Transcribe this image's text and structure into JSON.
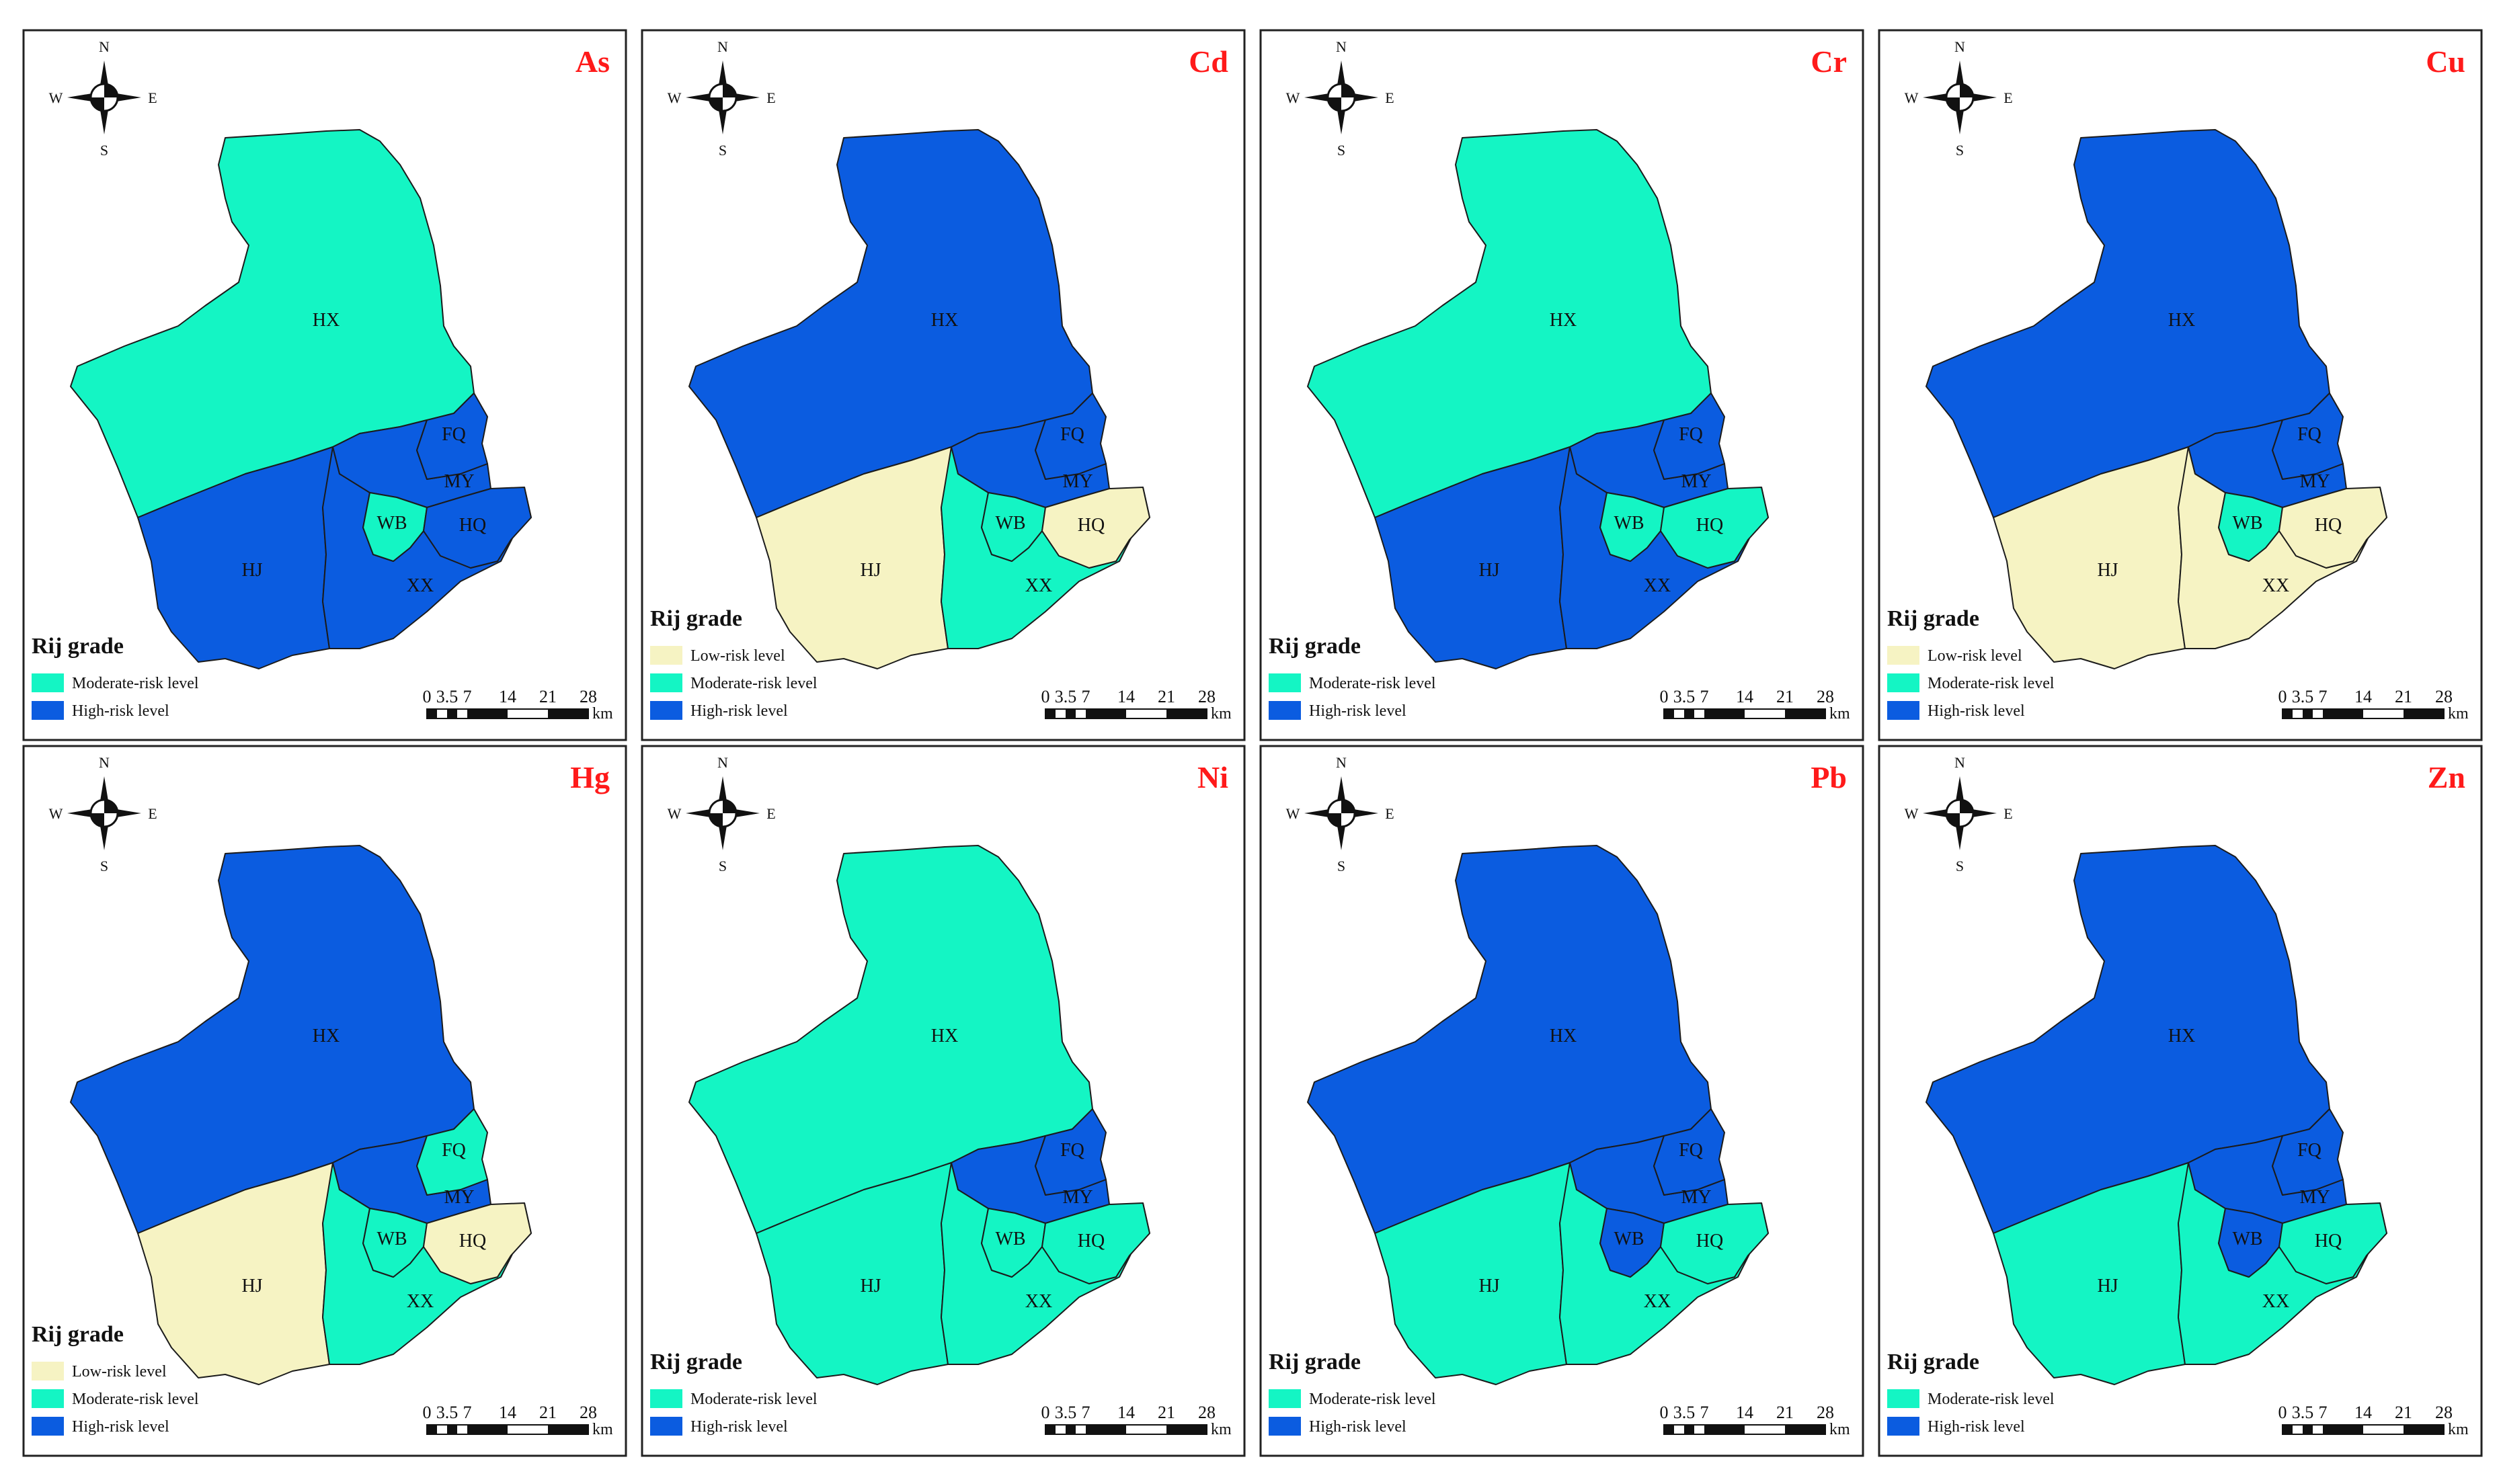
{
  "compass": {
    "n": "N",
    "s": "S",
    "e": "E",
    "w": "W"
  },
  "scale": {
    "ticks": [
      "0",
      "3.5",
      "7",
      "14",
      "21",
      "28"
    ],
    "unit": "km"
  },
  "legend_title": "Rij grade",
  "levels": {
    "low": {
      "label": "Low-risk level",
      "color": "#f6f3c3"
    },
    "moderate": {
      "label": "Moderate-risk level",
      "color": "#14f5c4"
    },
    "high": {
      "label": "High-risk level",
      "color": "#0b5ce0"
    }
  },
  "district_labels": {
    "HX": "HX",
    "FQ": "FQ",
    "MY": "MY",
    "WB": "WB",
    "HQ": "HQ",
    "HJ": "HJ",
    "XX": "XX"
  },
  "panels": [
    {
      "title": "As",
      "legend": [
        "moderate",
        "high"
      ],
      "risk": {
        "HX": "moderate",
        "FQ": "high",
        "MY": "high",
        "WB": "moderate",
        "HQ": "high",
        "HJ": "high",
        "XX": "high"
      }
    },
    {
      "title": "Cd",
      "legend": [
        "low",
        "moderate",
        "high"
      ],
      "risk": {
        "HX": "high",
        "FQ": "high",
        "MY": "high",
        "WB": "moderate",
        "HQ": "low",
        "HJ": "low",
        "XX": "moderate"
      }
    },
    {
      "title": "Cr",
      "legend": [
        "moderate",
        "high"
      ],
      "risk": {
        "HX": "moderate",
        "FQ": "high",
        "MY": "high",
        "WB": "moderate",
        "HQ": "moderate",
        "HJ": "high",
        "XX": "high"
      }
    },
    {
      "title": "Cu",
      "legend": [
        "low",
        "moderate",
        "high"
      ],
      "risk": {
        "HX": "high",
        "FQ": "high",
        "MY": "high",
        "WB": "moderate",
        "HQ": "low",
        "HJ": "low",
        "XX": "low"
      }
    },
    {
      "title": "Hg",
      "legend": [
        "low",
        "moderate",
        "high"
      ],
      "risk": {
        "HX": "high",
        "FQ": "moderate",
        "MY": "high",
        "WB": "moderate",
        "HQ": "low",
        "HJ": "low",
        "XX": "moderate"
      }
    },
    {
      "title": "Ni",
      "legend": [
        "moderate",
        "high"
      ],
      "risk": {
        "HX": "moderate",
        "FQ": "high",
        "MY": "high",
        "WB": "moderate",
        "HQ": "moderate",
        "HJ": "moderate",
        "XX": "moderate"
      }
    },
    {
      "title": "Pb",
      "legend": [
        "moderate",
        "high"
      ],
      "risk": {
        "HX": "high",
        "FQ": "high",
        "MY": "high",
        "WB": "high",
        "HQ": "moderate",
        "HJ": "moderate",
        "XX": "moderate"
      }
    },
    {
      "title": "Zn",
      "legend": [
        "moderate",
        "high"
      ],
      "risk": {
        "HX": "high",
        "FQ": "high",
        "MY": "high",
        "WB": "high",
        "HQ": "moderate",
        "HJ": "moderate",
        "XX": "moderate"
      }
    }
  ]
}
